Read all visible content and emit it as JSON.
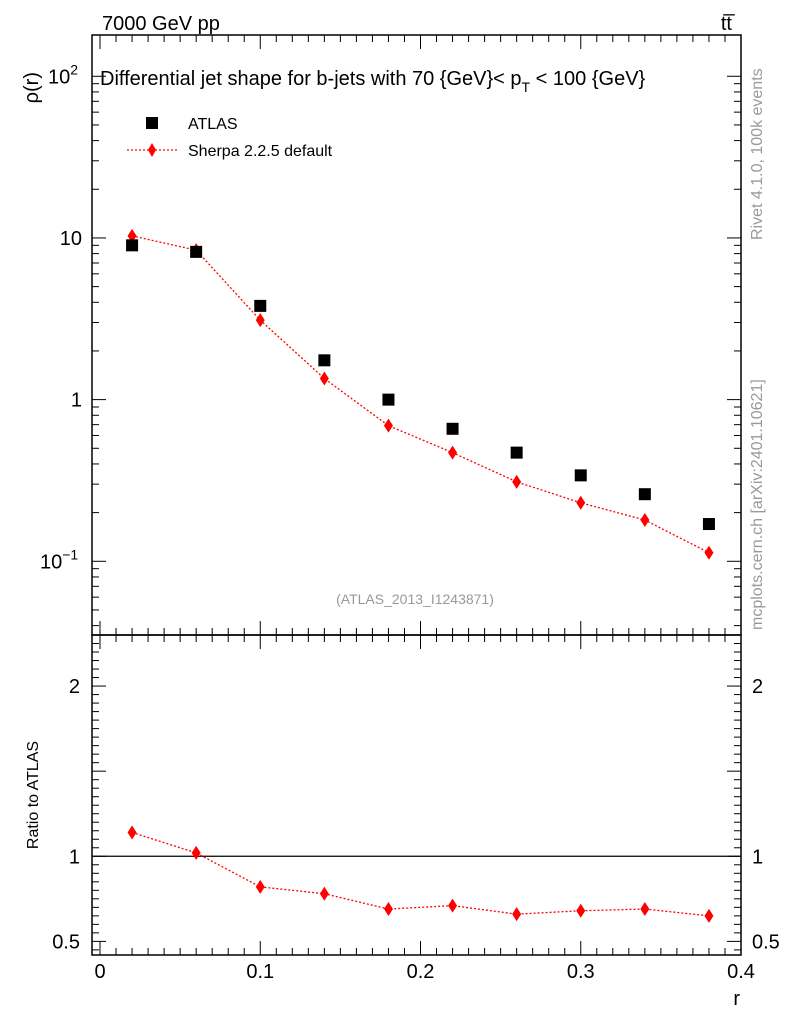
{
  "header": {
    "left": "7000 GeV pp",
    "right": "tt̅"
  },
  "side_labels": {
    "top": "Rivet 4.1.0,  100k events",
    "bottom": "mcplots.cern.ch [arXiv:2401.10621]"
  },
  "chart_data": [
    {
      "type": "scatter",
      "panel": "main",
      "title": "Differential jet shape for b-jets with 70 {GeV}< p_T < 100 {GeV}",
      "title_parts": {
        "pre": "Differential jet shape for b-jets with 70 {GeV}< p",
        "sub": "T",
        "post": " < 100 {GeV}"
      },
      "ylabel": "ρ(r)",
      "yscale": "log",
      "ylim": [
        0.035,
        180
      ],
      "xlim": [
        -0.005,
        0.4
      ],
      "ytick_labels": [
        {
          "value": 100,
          "base": "10",
          "exp": "2"
        },
        {
          "value": 10,
          "base": "10",
          "exp": ""
        },
        {
          "value": 1,
          "base": "1",
          "exp": ""
        },
        {
          "value": 0.1,
          "base": "10",
          "exp": "−1"
        }
      ],
      "watermark": "(ATLAS_2013_I1243871)",
      "legend": {
        "placement": "top-left",
        "entries": [
          "ATLAS",
          "Sherpa 2.2.5 default"
        ]
      },
      "series": [
        {
          "name": "ATLAS",
          "marker": "square",
          "color": "#000000",
          "x": [
            0.02,
            0.06,
            0.1,
            0.14,
            0.18,
            0.22,
            0.26,
            0.3,
            0.34,
            0.38
          ],
          "values": [
            9.0,
            8.2,
            3.8,
            1.75,
            1.0,
            0.66,
            0.47,
            0.34,
            0.26,
            0.17
          ]
        },
        {
          "name": "Sherpa 2.2.5 default",
          "marker": "diamond",
          "color": "#ff0000",
          "line": "dotted",
          "x": [
            0.02,
            0.06,
            0.1,
            0.14,
            0.18,
            0.22,
            0.26,
            0.3,
            0.34,
            0.38
          ],
          "values": [
            10.3,
            8.4,
            3.1,
            1.35,
            0.69,
            0.47,
            0.31,
            0.23,
            0.18,
            0.113
          ]
        }
      ]
    },
    {
      "type": "line",
      "panel": "ratio",
      "ylabel": "Ratio to ATLAS",
      "xlabel": "r",
      "ylim": [
        0.42,
        2.3
      ],
      "xlim": [
        -0.005,
        0.4
      ],
      "xtick_labels": [
        "0",
        "0.1",
        "0.2",
        "0.3",
        "0.4"
      ],
      "xtick_values": [
        0,
        0.1,
        0.2,
        0.3,
        0.4
      ],
      "ytick_labels": [
        "2",
        "1",
        "0.5"
      ],
      "ytick_values": [
        2,
        1,
        0.5
      ],
      "reference_line": 1,
      "series": [
        {
          "name": "Sherpa 2.2.5 default",
          "marker": "diamond",
          "color": "#ff0000",
          "line": "dotted",
          "x": [
            0.02,
            0.06,
            0.1,
            0.14,
            0.18,
            0.22,
            0.26,
            0.3,
            0.34,
            0.38
          ],
          "values": [
            1.14,
            1.02,
            0.82,
            0.78,
            0.69,
            0.71,
            0.66,
            0.68,
            0.69,
            0.65
          ]
        }
      ]
    }
  ]
}
